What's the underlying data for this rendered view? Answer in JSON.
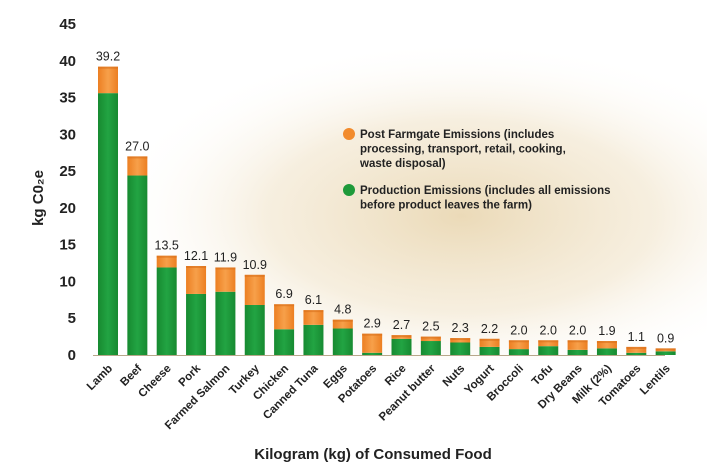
{
  "chart_data": {
    "type": "bar",
    "stacked": true,
    "categories": [
      "Lamb",
      "Beef",
      "Cheese",
      "Pork",
      "Farmed Salmon",
      "Turkey",
      "Chicken",
      "Canned Tuna",
      "Eggs",
      "Potatoes",
      "Rice",
      "Peanut butter",
      "Nuts",
      "Yogurt",
      "Broccoli",
      "Tofu",
      "Dry Beans",
      "Milk (2%)",
      "Tomatoes",
      "Lentils"
    ],
    "totals": [
      39.2,
      27.0,
      13.5,
      12.1,
      11.9,
      10.9,
      6.9,
      6.1,
      4.8,
      2.9,
      2.7,
      2.5,
      2.3,
      2.2,
      2.0,
      2.0,
      2.0,
      1.9,
      1.1,
      0.9
    ],
    "total_labels": [
      "39.2",
      "27.0",
      "13.5",
      "12.1",
      "11.9",
      "10.9",
      "6.9",
      "6.1",
      "4.8",
      "2.9",
      "2.7",
      "2.5",
      "2.3",
      "2.2",
      "2.0",
      "2.0",
      "2.0",
      "1.9",
      "1.1",
      "0.9"
    ],
    "series": [
      {
        "name": "Production Emissions (includes all emissions before product leaves the farm)",
        "color": "#1e9a3a",
        "values": [
          35.6,
          24.4,
          11.9,
          8.3,
          8.6,
          6.8,
          3.5,
          4.1,
          3.6,
          0.3,
          2.2,
          1.9,
          1.7,
          1.1,
          0.8,
          1.2,
          0.7,
          0.9,
          0.3,
          0.5
        ]
      },
      {
        "name": "Post Farmgate Emissions (includes processing, transport, retail, cooking, waste disposal)",
        "color": "#f28b2c",
        "values": [
          3.6,
          2.6,
          1.6,
          3.8,
          3.3,
          4.1,
          3.4,
          2.0,
          1.2,
          2.6,
          0.5,
          0.6,
          0.6,
          1.1,
          1.2,
          0.8,
          1.3,
          1.0,
          0.8,
          0.4
        ]
      }
    ],
    "ylim": [
      0,
      45
    ],
    "yticks": [
      "0",
      "5",
      "10",
      "15",
      "20",
      "25",
      "30",
      "35",
      "40",
      "45"
    ],
    "ylabel": "kg C0₂e",
    "xlabel": "Kilogram (kg) of Consumed Food",
    "legend_position": "top-right",
    "legend": [
      {
        "color": "#f28b2c",
        "lines": [
          "Post Farmgate Emissions (includes",
          "processing, transport, retail, cooking,",
          "waste disposal)"
        ]
      },
      {
        "color": "#1e9a3a",
        "lines": [
          "Production Emissions (includes all emissions",
          "before product leaves the farm)"
        ]
      }
    ],
    "grid": false
  }
}
